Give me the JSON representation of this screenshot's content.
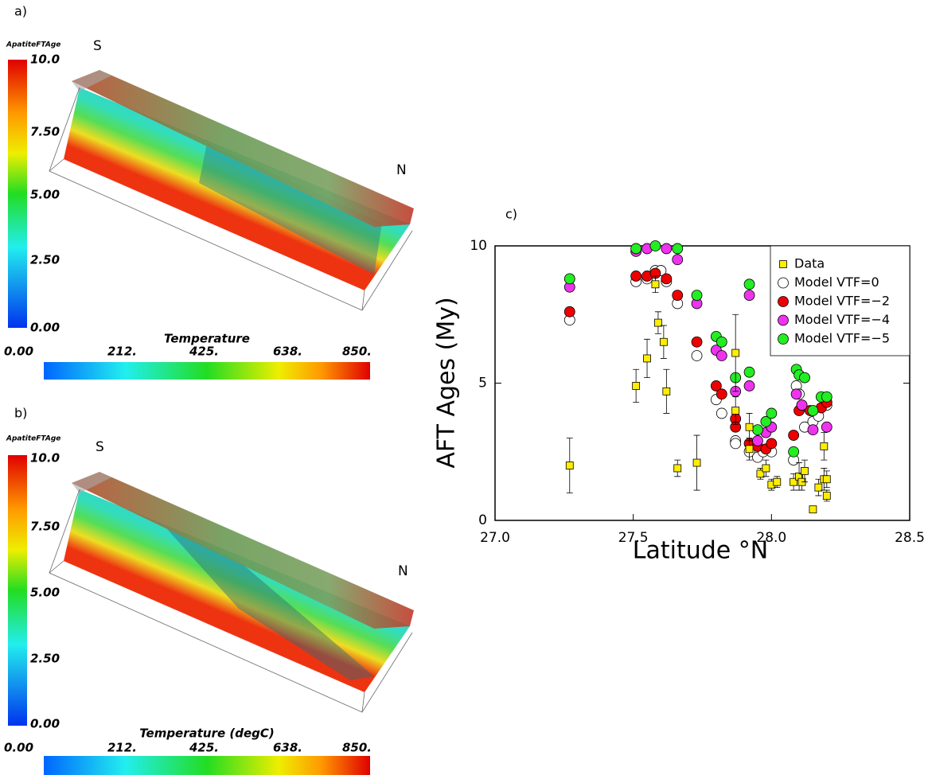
{
  "panel_a": {
    "label": "a)",
    "colorbar_title": "ApatiteFTAge",
    "colorbar_ticks": [
      "10.0",
      "7.50",
      "5.00",
      "2.50",
      "0.00"
    ],
    "south": "S",
    "north": "N",
    "temperature_title": "Temperature",
    "temperature_ticks": [
      "0.00",
      "212.",
      "425.",
      "638.",
      "850."
    ]
  },
  "panel_b": {
    "label": "b)",
    "colorbar_title": "ApatiteFTAge",
    "colorbar_ticks": [
      "10.0",
      "7.50",
      "5.00",
      "2.50",
      "0.00"
    ],
    "south": "S",
    "north": "N",
    "temperature_title": "Temperature (degC)",
    "temperature_ticks": [
      "0.00",
      "212.",
      "425.",
      "638.",
      "850."
    ]
  },
  "chart_data": {
    "type": "scatter",
    "panel_label": "c)",
    "x_label": "Latitude °N",
    "y_label": "AFT Ages (My)",
    "xlim": [
      27.0,
      28.5
    ],
    "ylim": [
      0,
      10
    ],
    "xticks": [
      {
        "value": 27.0,
        "label": "27.0"
      },
      27.5,
      {
        "value": 28.0,
        "label": "28.0"
      },
      28.5
    ],
    "yticks": [
      0,
      5,
      10
    ],
    "legend": "upper right",
    "series": [
      {
        "name": "Data",
        "color": "#ffee00",
        "marker": "square",
        "x": [
          27.27,
          27.51,
          27.55,
          27.58,
          27.59,
          27.61,
          27.62,
          27.66,
          27.73,
          27.87,
          27.87,
          27.92,
          27.92,
          27.96,
          27.98,
          28.0,
          28.02,
          28.08,
          28.1,
          28.11,
          28.12,
          28.15,
          28.17,
          28.19,
          28.19,
          28.2,
          28.2
        ],
        "values": [
          2.0,
          4.9,
          5.9,
          8.6,
          7.2,
          6.5,
          4.7,
          1.9,
          2.1,
          6.1,
          4.0,
          3.4,
          2.6,
          1.7,
          1.9,
          1.3,
          1.4,
          1.4,
          1.6,
          1.4,
          1.8,
          0.4,
          1.2,
          1.5,
          2.7,
          0.9,
          1.5
        ],
        "errors": [
          1.0,
          0.6,
          0.7,
          0.3,
          0.4,
          0.6,
          0.8,
          0.3,
          1.0,
          1.4,
          0.5,
          0.5,
          0.4,
          0.2,
          0.3,
          0.2,
          0.2,
          0.3,
          0.5,
          0.3,
          0.4,
          0.1,
          0.3,
          0.4,
          0.5,
          0.2,
          0.3
        ]
      },
      {
        "name": "Model VTF=0",
        "color": "#ffffff",
        "marker": "circle",
        "x": [
          27.27,
          27.51,
          27.55,
          27.58,
          27.6,
          27.62,
          27.66,
          27.73,
          27.8,
          27.82,
          27.87,
          27.87,
          27.92,
          27.95,
          27.97,
          28.0,
          28.08,
          28.09,
          28.1,
          28.12,
          28.15,
          28.17,
          28.2
        ],
        "values": [
          7.3,
          8.7,
          8.8,
          9.1,
          9.1,
          8.7,
          7.9,
          6.0,
          4.4,
          3.9,
          2.9,
          2.8,
          2.5,
          2.3,
          2.5,
          2.5,
          2.2,
          4.9,
          4.6,
          3.4,
          3.6,
          3.8,
          4.2
        ]
      },
      {
        "name": "Model VTF=−2",
        "color": "#ee0000",
        "marker": "circle",
        "x": [
          27.27,
          27.51,
          27.55,
          27.58,
          27.62,
          27.66,
          27.73,
          27.8,
          27.82,
          27.87,
          27.87,
          27.92,
          27.95,
          27.98,
          28.0,
          28.08,
          28.1,
          28.11,
          28.14,
          28.18,
          28.2
        ],
        "values": [
          7.6,
          8.9,
          8.9,
          9.0,
          8.8,
          8.2,
          6.5,
          4.9,
          4.6,
          3.7,
          3.4,
          2.8,
          2.7,
          2.6,
          2.8,
          3.1,
          4.0,
          4.2,
          4.0,
          4.1,
          4.3
        ]
      },
      {
        "name": "Model VTF=−4",
        "color": "#ee33ee",
        "marker": "circle",
        "x": [
          27.27,
          27.51,
          27.55,
          27.62,
          27.66,
          27.73,
          27.8,
          27.82,
          27.87,
          27.92,
          27.92,
          27.95,
          27.98,
          28.0,
          28.09,
          28.11,
          28.15,
          28.2
        ],
        "values": [
          8.5,
          9.8,
          9.9,
          9.9,
          9.5,
          7.9,
          6.2,
          6.0,
          4.7,
          4.9,
          8.2,
          2.9,
          3.2,
          3.4,
          4.6,
          4.2,
          3.3,
          3.4
        ]
      },
      {
        "name": "Model VTF=−5",
        "color": "#22ee22",
        "marker": "circle",
        "x": [
          27.27,
          27.51,
          27.58,
          27.66,
          27.73,
          27.8,
          27.82,
          27.87,
          27.92,
          27.92,
          27.95,
          27.98,
          28.0,
          28.08,
          28.09,
          28.1,
          28.12,
          28.15,
          28.18,
          28.2
        ],
        "values": [
          8.8,
          9.9,
          10.0,
          9.9,
          8.2,
          6.7,
          6.5,
          5.2,
          5.4,
          8.6,
          3.3,
          3.6,
          3.9,
          2.5,
          5.5,
          5.3,
          5.2,
          4.0,
          4.5,
          4.5
        ]
      }
    ]
  }
}
